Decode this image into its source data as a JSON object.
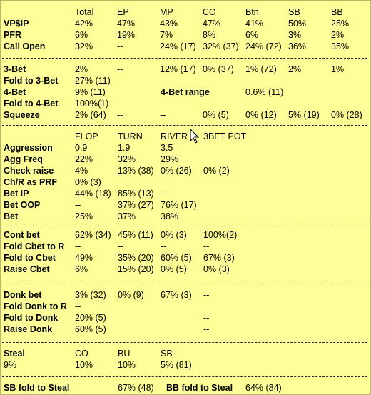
{
  "sections": [
    {
      "rows": [
        {
          "label": "",
          "cells": [
            "Total",
            "EP",
            "MP",
            "CO",
            "Btn",
            "SB",
            "BB"
          ],
          "header": true
        },
        {
          "label": "VP$IP",
          "cells": [
            "42%",
            "47%",
            "43%",
            "47%",
            "41%",
            "50%",
            "25%"
          ]
        },
        {
          "label": "PFR",
          "cells": [
            "6%",
            "19%",
            "7%",
            "8%",
            "6%",
            "3%",
            "2%"
          ]
        },
        {
          "label": "Call Open",
          "cells": [
            "32%",
            "--",
            "24%  (17)",
            "32%  (37)",
            "24%  (72)",
            "36%",
            "35%"
          ]
        }
      ]
    },
    {
      "rows": [
        {
          "label": "3-Bet",
          "cells": [
            "2%",
            "--",
            "12%  (17)",
            "0%    (37)",
            "1%   (72)",
            "2%",
            "1%"
          ]
        },
        {
          "label": "Fold to 3-Bet",
          "cells": [
            "27%  (11)"
          ]
        },
        {
          "label": "4-Bet",
          "cells": [
            "9%   (11)"
          ],
          "extra_label": "4-Bet range",
          "extra_value": "0.6% (11)"
        },
        {
          "label": "Fold to 4-Bet",
          "cells": [
            "100%(1)"
          ]
        },
        {
          "label": "Squeeze",
          "cells": [
            "2%   (64)",
            "--",
            "--",
            "0%     (5)",
            "0%   (12)",
            "5%   (19)",
            "0%   (28)"
          ]
        }
      ]
    },
    {
      "rows": [
        {
          "label": "",
          "cells": [
            "FLOP",
            "TURN",
            "RIVER",
            "3BET POT"
          ],
          "header": true
        },
        {
          "label": "Aggression",
          "cells": [
            "0.9",
            "1.9",
            "3.5"
          ]
        },
        {
          "label": "Agg Freq",
          "cells": [
            "22%",
            "32%",
            "29%"
          ]
        },
        {
          "label": "Check raise",
          "cells": [
            "4%",
            "13%  (38)",
            "0%   (26)",
            "0%   (2)"
          ]
        },
        {
          "label": "Ch/R as PRF",
          "cells": [
            "0%   (3)"
          ]
        },
        {
          "label": "Bet IP",
          "cells": [
            "44%  (18)",
            "85%  (13)",
            "--"
          ]
        },
        {
          "label": "Bet OOP",
          "cells": [
            "--",
            "37%  (27)",
            "76%  (17)"
          ]
        },
        {
          "label": "Bet",
          "cells": [
            "25%",
            "37%",
            "38%"
          ]
        }
      ]
    },
    {
      "rows": [
        {
          "label": "Cont bet",
          "cells": [
            "62%  (34)",
            "45%  (11)",
            "0%     (3)",
            "100%(2)"
          ]
        },
        {
          "label": "Fold Cbet to R",
          "cells": [
            "--",
            "--",
            "--",
            "--"
          ]
        },
        {
          "label": "Fold to Cbet",
          "cells": [
            "49%",
            "35%  (20)",
            "60%   (5)",
            "67%  (3)"
          ]
        },
        {
          "label": "Raise Cbet",
          "cells": [
            "6%",
            "15%  (20)",
            "0%     (5)",
            "0%   (3)"
          ]
        }
      ]
    },
    {
      "rows": [
        {
          "label": "Donk bet",
          "cells": [
            "3%   (32)",
            "0%     (9)",
            "67%   (3)",
            "--"
          ]
        },
        {
          "label": "Fold Donk to R",
          "cells": [
            "--"
          ]
        },
        {
          "label": "Fold to Donk",
          "cells": [
            "20%  (5)",
            "",
            "",
            "--"
          ]
        },
        {
          "label": "Raise Donk",
          "cells": [
            "60%  (5)",
            "",
            "",
            "--"
          ]
        }
      ]
    },
    {
      "rows": [
        {
          "label": "Steal",
          "cells": [
            "CO",
            "BU",
            "SB"
          ],
          "header": true
        },
        {
          "label": "9%",
          "label_plain": true,
          "cells": [
            "10%",
            "10%",
            "5%   (81)"
          ]
        }
      ]
    },
    {
      "rows": [
        {
          "label": "SB fold to Steal",
          "cells": [
            "",
            "67%  (48)"
          ],
          "extra_label": "BB fold to Steal",
          "extra_value": "64%  (84)"
        }
      ]
    }
  ]
}
